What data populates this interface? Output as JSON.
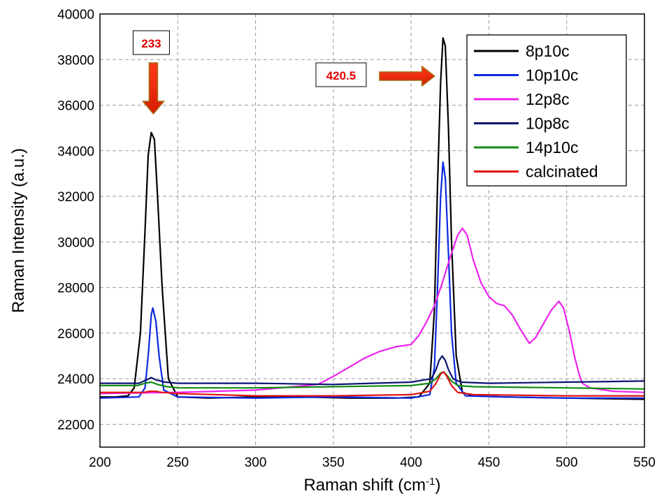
{
  "chart_data": {
    "type": "line",
    "title": "",
    "xlabel": "Raman shift (cm",
    "xlabel_sup": "-1",
    "xlabel_end": ")",
    "ylabel": "Raman Intensity (a.u.)",
    "xlim": [
      200,
      550
    ],
    "ylim": [
      21000,
      40000
    ],
    "xticks": [
      200,
      250,
      300,
      350,
      400,
      450,
      500,
      550
    ],
    "yticks": [
      22000,
      24000,
      26000,
      28000,
      30000,
      32000,
      34000,
      36000,
      38000,
      40000
    ],
    "grid": true,
    "legend_position": "top-right",
    "series": [
      {
        "name": "8p10c",
        "color": "#000000",
        "x": [
          200,
          210,
          218,
          222,
          226,
          229,
          231,
          233,
          235,
          237,
          240,
          244,
          250,
          270,
          300,
          330,
          360,
          390,
          405,
          412,
          415,
          417,
          419,
          420.5,
          422,
          424,
          426,
          429,
          433,
          440,
          460,
          500,
          550
        ],
        "y": [
          23200,
          23200,
          23250,
          23600,
          26000,
          30500,
          33800,
          34800,
          34500,
          32000,
          28000,
          24000,
          23200,
          23150,
          23200,
          23200,
          23150,
          23150,
          23200,
          23800,
          27000,
          32500,
          37000,
          38950,
          38600,
          35000,
          30000,
          25000,
          23400,
          23250,
          23200,
          23150,
          23100
        ]
      },
      {
        "name": "10p10c",
        "color": "#0a28e0",
        "x": [
          200,
          225,
          229,
          231,
          233,
          234,
          236,
          238,
          241,
          250,
          300,
          350,
          400,
          412,
          415,
          417,
          419,
          420.5,
          422,
          424,
          426,
          429,
          435,
          460,
          500,
          550
        ],
        "y": [
          23150,
          23200,
          23600,
          25000,
          26800,
          27100,
          26500,
          25000,
          23500,
          23200,
          23150,
          23200,
          23150,
          23300,
          24500,
          28000,
          32000,
          33500,
          32800,
          29500,
          26000,
          23800,
          23250,
          23200,
          23150,
          23150
        ]
      },
      {
        "name": "12p8c",
        "color": "#ee22ee",
        "x": [
          200,
          250,
          300,
          340,
          350,
          360,
          370,
          380,
          390,
          400,
          405,
          410,
          415,
          420,
          425,
          430,
          433,
          436,
          440,
          445,
          450,
          455,
          460,
          465,
          470,
          476,
          480,
          485,
          490,
          495,
          498,
          502,
          505,
          508,
          510,
          515,
          530,
          550
        ],
        "y": [
          23350,
          23400,
          23500,
          23750,
          24100,
          24500,
          24900,
          25200,
          25400,
          25500,
          25900,
          26500,
          27200,
          28200,
          29300,
          30300,
          30600,
          30300,
          29200,
          28200,
          27600,
          27300,
          27200,
          26800,
          26200,
          25550,
          25800,
          26400,
          27000,
          27400,
          27100,
          26000,
          25000,
          24200,
          23800,
          23600,
          23450,
          23400
        ]
      },
      {
        "name": "10p8c",
        "color": "#0c1470",
        "x": [
          200,
          225,
          230,
          233,
          236,
          242,
          250,
          300,
          350,
          400,
          413,
          416,
          418,
          420,
          422,
          424,
          427,
          432,
          450,
          500,
          550
        ],
        "y": [
          23800,
          23800,
          23950,
          24050,
          23950,
          23850,
          23800,
          23800,
          23750,
          23850,
          24000,
          24400,
          24800,
          25000,
          24800,
          24400,
          24000,
          23850,
          23800,
          23850,
          23900
        ]
      },
      {
        "name": "14p10c",
        "color": "#138a13",
        "x": [
          200,
          224,
          229,
          233,
          237,
          243,
          250,
          300,
          350,
          400,
          412,
          416,
          419,
          421,
          423,
          426,
          430,
          440,
          500,
          550
        ],
        "y": [
          23700,
          23700,
          23800,
          23850,
          23750,
          23650,
          23600,
          23600,
          23650,
          23700,
          23800,
          24000,
          24250,
          24300,
          24150,
          23900,
          23700,
          23650,
          23600,
          23550
        ]
      },
      {
        "name": "calcinated",
        "color": "#e01414",
        "x": [
          200,
          228,
          232,
          236,
          240,
          250,
          300,
          350,
          400,
          412,
          416,
          419,
          421,
          423,
          426,
          430,
          440,
          500,
          550
        ],
        "y": [
          23400,
          23400,
          23450,
          23450,
          23400,
          23350,
          23250,
          23250,
          23300,
          23450,
          23800,
          24200,
          24300,
          24100,
          23700,
          23400,
          23300,
          23250,
          23250
        ]
      }
    ],
    "annotations": [
      {
        "label": "233",
        "x": 233,
        "direction": "down"
      },
      {
        "label": "420.5",
        "x": 420.5,
        "direction": "right"
      }
    ]
  }
}
